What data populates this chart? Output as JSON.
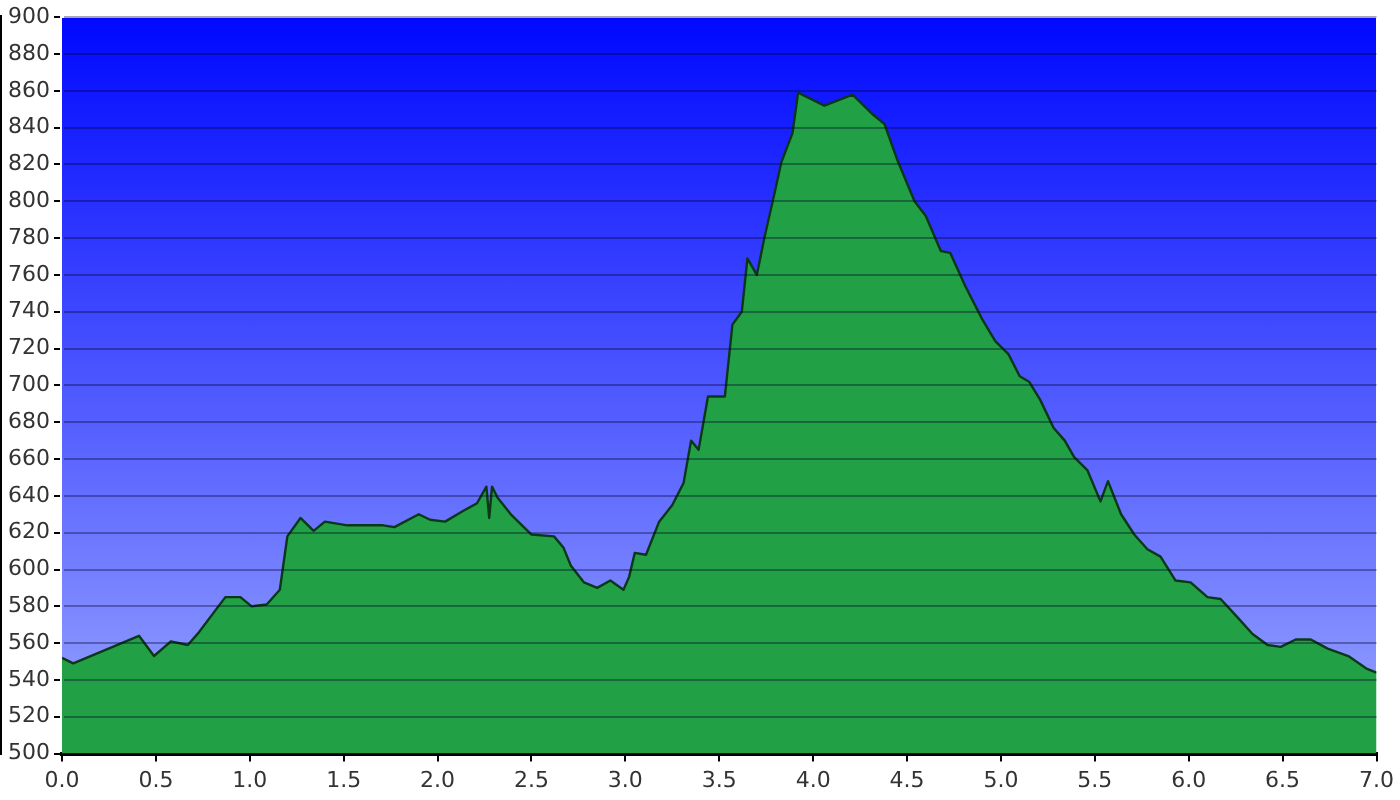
{
  "chart_data": {
    "type": "area",
    "color": "#22a045",
    "marker": "none",
    "line_style": "solid",
    "grid": "y",
    "legend": false,
    "x": [
      0,
      0.06,
      0.41,
      0.49,
      0.58,
      0.67,
      0.73,
      0.87,
      0.95,
      1.01,
      1.09,
      1.16,
      1.2,
      1.27,
      1.34,
      1.4,
      1.52,
      1.71,
      1.77,
      1.9,
      1.96,
      2.04,
      2.14,
      2.21,
      2.26,
      2.275,
      2.29,
      2.32,
      2.39,
      2.5,
      2.62,
      2.67,
      2.71,
      2.78,
      2.85,
      2.92,
      2.99,
      3.02,
      3.05,
      3.11,
      3.18,
      3.25,
      3.31,
      3.35,
      3.39,
      3.44,
      3.53,
      3.57,
      3.62,
      3.65,
      3.7,
      3.74,
      3.8,
      3.83,
      3.89,
      3.92,
      4.06,
      4.21,
      4.32,
      4.38,
      4.45,
      4.54,
      4.6,
      4.68,
      4.73,
      4.81,
      4.9,
      4.97,
      5.04,
      5.1,
      5.15,
      5.21,
      5.28,
      5.34,
      5.39,
      5.46,
      5.53,
      5.57,
      5.64,
      5.71,
      5.78,
      5.85,
      5.93,
      6.01,
      6.1,
      6.17,
      6.26,
      6.34,
      6.42,
      6.49,
      6.57,
      6.65,
      6.74,
      6.85,
      6.95,
      7
    ],
    "values": [
      552,
      549,
      564,
      553,
      561,
      559,
      566,
      585,
      585,
      580,
      581,
      589,
      618,
      628,
      621,
      626,
      624,
      624,
      623,
      630,
      627,
      626,
      632,
      636,
      645,
      628,
      645,
      639,
      630,
      619,
      618,
      612,
      602,
      593,
      590,
      594,
      589,
      596,
      609,
      608,
      626,
      635,
      647,
      670,
      665,
      694,
      694,
      733,
      740,
      769,
      760,
      780,
      807,
      821,
      837,
      859,
      852,
      858,
      847,
      842,
      822,
      800,
      792,
      773,
      772,
      754,
      736,
      724,
      717,
      705,
      702,
      692,
      677,
      670,
      661,
      654,
      637,
      648,
      630,
      619,
      611,
      607,
      594,
      593,
      585,
      584,
      574,
      565,
      559,
      558,
      562,
      562,
      557,
      553,
      546,
      544
    ],
    "xlim": [
      0,
      7
    ],
    "xticks": [
      {
        "value": 0,
        "label": "0.0"
      },
      0.5,
      {
        "value": 1,
        "label": "1.0"
      },
      1.5,
      {
        "value": 2,
        "label": "2.0"
      },
      2.5,
      {
        "value": 3,
        "label": "3.0"
      },
      3.5,
      {
        "value": 4,
        "label": "4.0"
      },
      4.5,
      {
        "value": 5,
        "label": "5.0"
      },
      5.5,
      {
        "value": 6,
        "label": "6.0"
      },
      6.5,
      {
        "value": 7,
        "label": "7.0"
      }
    ],
    "ylim": [
      500,
      900
    ],
    "yticks": [
      500,
      520,
      540,
      560,
      580,
      600,
      620,
      640,
      660,
      680,
      700,
      720,
      740,
      760,
      780,
      800,
      820,
      840,
      860,
      880,
      900
    ]
  }
}
